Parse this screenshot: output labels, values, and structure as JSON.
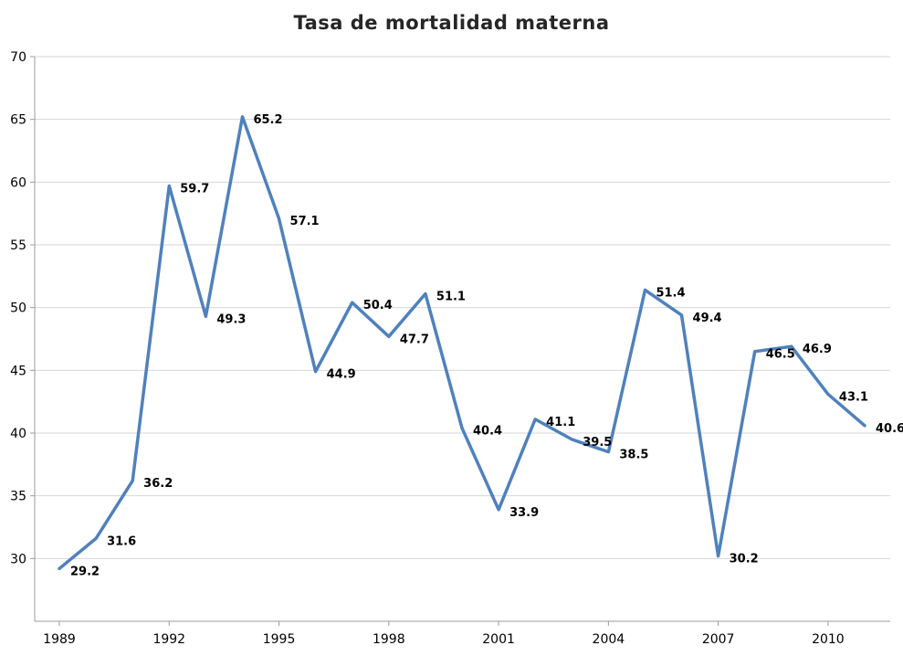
{
  "chart_data": {
    "type": "line",
    "title": "Tasa de mortalidad materna",
    "xlabel": "",
    "ylabel": "",
    "categories": [
      1989,
      1990,
      1991,
      1992,
      1993,
      1994,
      1995,
      1996,
      1997,
      1998,
      1999,
      2000,
      2001,
      2002,
      2003,
      2004,
      2005,
      2006,
      2007,
      2008,
      2009,
      2010,
      2011
    ],
    "values": [
      29.2,
      31.6,
      36.2,
      59.7,
      49.3,
      65.2,
      57.1,
      44.9,
      50.4,
      47.7,
      51.1,
      40.4,
      33.9,
      41.1,
      39.5,
      38.5,
      51.4,
      49.4,
      30.2,
      46.5,
      46.9,
      43.1,
      40.6
    ],
    "ylim": [
      25,
      70
    ],
    "yticks": [
      30,
      35,
      40,
      45,
      50,
      55,
      60,
      65,
      70
    ],
    "xticks": [
      1989,
      1992,
      1995,
      1998,
      2001,
      2004,
      2007,
      2010
    ],
    "grid": true,
    "legend_position": "none",
    "line_color": "#4F81BD",
    "grid_color": "#D6D6D6",
    "axis_color": "#9B9B9B",
    "tick_label_color": "#000000",
    "data_label_color": "#000000"
  }
}
